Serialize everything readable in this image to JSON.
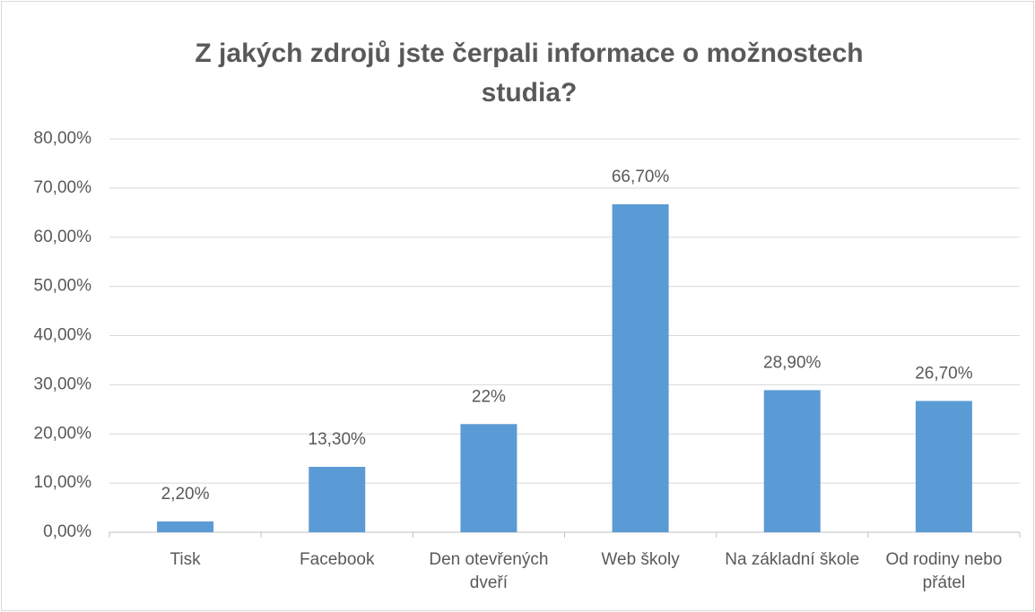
{
  "chart_data": {
    "type": "bar",
    "title": "Z jakých zdrojů jste čerpali informace o možnostech studia?",
    "categories": [
      "Tisk",
      "Facebook",
      "Den otevřených dveří",
      "Web školy",
      "Na základní škole",
      "Od rodiny nebo přátel"
    ],
    "values": [
      2.2,
      13.3,
      22,
      66.7,
      28.9,
      26.7
    ],
    "value_labels": [
      "2,20%",
      "13,30%",
      "22%",
      "66,70%",
      "28,90%",
      "26,70%"
    ],
    "color": "#5b9bd5",
    "ylim": [
      0,
      80
    ],
    "yticks": [
      {
        "value": 0,
        "label": "0,00%"
      },
      {
        "value": 10,
        "label": "10,00%"
      },
      {
        "value": 20,
        "label": "20,00%"
      },
      {
        "value": 30,
        "label": "30,00%"
      },
      {
        "value": 40,
        "label": "40,00%"
      },
      {
        "value": 50,
        "label": "50,00%"
      },
      {
        "value": 60,
        "label": "60,00%"
      },
      {
        "value": 70,
        "label": "70,00%"
      },
      {
        "value": 80,
        "label": "80,00%"
      }
    ],
    "grid": true
  }
}
